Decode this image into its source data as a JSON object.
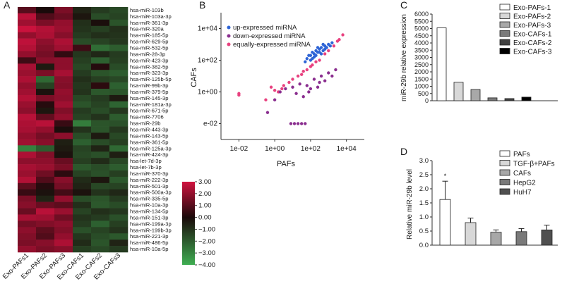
{
  "chart_data": [
    {
      "panel": "A",
      "type": "heatmap",
      "columns": [
        "Exo-PAFs1",
        "Exo-PAFs2",
        "Exo-PAFs3",
        "Exo-CAFs1",
        "Exo-CAFs2",
        "Exo-CAFs3"
      ],
      "rows": [
        "hsa-miR-103b",
        "hsa-miR-103a-3p",
        "hsa-miR-361-3p",
        "hsa-miR-320a",
        "hsa-miR-185-5p",
        "hsa-miR-629-5p",
        "hsa-miR-532-5p",
        "hsa-miR-28-3p",
        "hsa-miR-423-3p",
        "hsa-miR-382-5p",
        "hsa-miR-323-3p",
        "hsa-miR-125b-5p",
        "hsa-miR-99b-3p",
        "hsa-miR-379-5p",
        "hsa-miR-145-3p",
        "hsa-miR-181a-3p",
        "hsa-miR-671-5p",
        "hsa-miR-7706",
        "hsa-miR-29b",
        "hsa-miR-443-3p",
        "hsa-miR-143-5p",
        "hsa-miR-361-5p",
        "hsa-miR-125a-3p",
        "hsa-miR-424-3p",
        "hsa-let-7d-3p",
        "hsa-let-7b-3p",
        "hsa-miR-370-3p",
        "hsa-miR-222-3p",
        "hsa-miR-501-3p",
        "hsa-miR-500a-3p",
        "hsa-miR-335-5p",
        "hsa-miR-10a-3p",
        "hsa-miR-134-5p",
        "hsa-miR-151-3p",
        "hsa-miR-199a-3p",
        "hsa-miR-199b-3p",
        "hsa-miR-221-3p",
        "hsa-miR-486-5p",
        "hsa-miR-10a-5p"
      ],
      "values": [
        [
          1.0,
          0.0,
          1.6,
          -0.6,
          -1.2,
          -1.5
        ],
        [
          2.6,
          0.9,
          1.3,
          -0.3,
          -1.6,
          -1.4
        ],
        [
          2.2,
          1.6,
          2.0,
          -0.9,
          -0.1,
          -1.8
        ],
        [
          2.9,
          2.5,
          2.1,
          -1.0,
          -1.3,
          -0.9
        ],
        [
          2.0,
          2.4,
          1.8,
          -1.2,
          -0.9,
          -1.0
        ],
        [
          2.7,
          1.9,
          2.4,
          -1.6,
          -1.4,
          -1.1
        ],
        [
          2.5,
          1.7,
          2.2,
          0.6,
          -2.4,
          -2.0
        ],
        [
          2.0,
          1.5,
          0.4,
          -1.1,
          -0.7,
          -1.2
        ],
        [
          0.6,
          1.8,
          1.9,
          -1.3,
          -2.1,
          -1.3
        ],
        [
          2.3,
          -0.4,
          1.9,
          -1.5,
          0.2,
          -1.6
        ],
        [
          2.1,
          1.6,
          2.3,
          -1.2,
          -1.8,
          -2.0
        ],
        [
          2.4,
          -2.3,
          1.8,
          -0.9,
          -1.3,
          -1.5
        ],
        [
          2.0,
          -1.4,
          1.7,
          -1.1,
          0.3,
          -2.1
        ],
        [
          2.2,
          -0.2,
          2.0,
          -1.0,
          -1.9,
          -1.8
        ],
        [
          2.5,
          1.6,
          1.9,
          -1.5,
          -1.2,
          -0.4
        ],
        [
          2.1,
          0.2,
          2.2,
          -1.8,
          -1.4,
          -2.2
        ],
        [
          1.9,
          -0.3,
          1.7,
          -1.2,
          -1.6,
          -1.1
        ],
        [
          2.6,
          1.2,
          2.0,
          -1.4,
          -1.0,
          -2.0
        ],
        [
          2.4,
          2.6,
          0.5,
          -2.8,
          -1.8,
          -1.7
        ],
        [
          2.3,
          2.0,
          -0.1,
          -1.0,
          -1.8,
          -1.1
        ],
        [
          2.0,
          1.5,
          1.9,
          -1.6,
          -0.4,
          -1.5
        ],
        [
          2.2,
          1.8,
          -0.5,
          -2.1,
          -1.6,
          -1.3
        ],
        [
          -2.9,
          -2.0,
          -0.4,
          -1.4,
          -0.6,
          -2.3
        ],
        [
          2.4,
          1.7,
          -0.2,
          -1.5,
          -1.7,
          -0.5
        ],
        [
          1.9,
          1.9,
          1.3,
          -1.3,
          -0.8,
          -1.5
        ],
        [
          2.3,
          2.1,
          1.6,
          -1.9,
          -1.6,
          -2.0
        ],
        [
          2.1,
          1.4,
          0.3,
          -1.4,
          -1.7,
          -1.3
        ],
        [
          2.5,
          0.9,
          1.8,
          -0.8,
          -0.3,
          -1.9
        ],
        [
          1.1,
          0.2,
          1.5,
          -0.6,
          -1.5,
          -1.4
        ],
        [
          0.5,
          -0.2,
          0.7,
          -0.2,
          -1.0,
          -0.7
        ],
        [
          1.6,
          -0.6,
          2.0,
          -1.6,
          -1.8,
          -1.2
        ],
        [
          1.8,
          1.3,
          1.1,
          -0.9,
          -1.9,
          -1.6
        ],
        [
          1.3,
          2.6,
          2.1,
          -1.4,
          -0.9,
          -1.1
        ],
        [
          2.3,
          2.2,
          1.4,
          -1.0,
          -1.2,
          -1.7
        ],
        [
          1.5,
          1.7,
          1.9,
          -1.2,
          -2.1,
          -1.3
        ],
        [
          1.9,
          1.1,
          1.7,
          -1.7,
          -1.4,
          -1.0
        ],
        [
          1.7,
          0.9,
          2.0,
          -1.1,
          -1.6,
          -1.9
        ],
        [
          1.6,
          1.8,
          2.4,
          -0.8,
          -1.8,
          -0.6
        ],
        [
          2.0,
          1.6,
          1.8,
          -1.3,
          -1.5,
          -1.2
        ]
      ],
      "scale_min": -4.0,
      "scale_max": 3.0,
      "colorbar_ticks": [
        "3.00",
        "2.00",
        "1.00",
        "0.00",
        "−1.00",
        "−2.00",
        "−3.00",
        "−4.00"
      ],
      "colorbar_tick_values": [
        3,
        2,
        1,
        0,
        -1,
        -2,
        -3,
        -4
      ],
      "colors": {
        "high": "#d0123f",
        "mid": "#1a0a0a",
        "low": "#3fae52"
      }
    },
    {
      "panel": "B",
      "type": "scatter",
      "xlabel": "PAFs",
      "ylabel": "CAFs",
      "xscale": "log10",
      "yscale": "log10",
      "xlim_log10": [
        -3,
        5
      ],
      "ylim_log10": [
        -3,
        5
      ],
      "x_ticks": [
        "1e-02",
        "1e+00",
        "1e+02",
        "1e+04"
      ],
      "x_tick_values_log10": [
        -2,
        0,
        2,
        4
      ],
      "y_ticks": [
        "e-02",
        "1e+00",
        "1e+02",
        "1e+04"
      ],
      "y_tick_values_log10": [
        -2,
        0,
        2,
        4
      ],
      "legend": [
        "up-expressed miRNA",
        "down-expressed miRNA",
        "equally-expressed miRNA"
      ],
      "legend_position": "top-left",
      "series_colors": [
        "#2e64d6",
        "#8a2e8f",
        "#e8417f"
      ],
      "series": [
        {
          "name": "up-expressed miRNA",
          "points_log10": [
            [
              2.0,
              2.3
            ],
            [
              2.1,
              2.5
            ],
            [
              2.2,
              2.4
            ],
            [
              2.3,
              2.6
            ],
            [
              2.4,
              2.5
            ],
            [
              2.5,
              2.7
            ],
            [
              2.6,
              2.8
            ],
            [
              2.7,
              2.6
            ],
            [
              2.8,
              2.9
            ],
            [
              2.9,
              2.8
            ],
            [
              3.0,
              3.0
            ],
            [
              3.1,
              2.9
            ],
            [
              1.8,
              2.1
            ],
            [
              1.9,
              2.3
            ],
            [
              2.2,
              2.2
            ],
            [
              2.5,
              2.5
            ],
            [
              2.0,
              2.0
            ],
            [
              2.3,
              2.3
            ],
            [
              2.6,
              2.4
            ],
            [
              2.8,
              2.7
            ],
            [
              3.2,
              3.1
            ],
            [
              2.4,
              2.8
            ],
            [
              2.7,
              3.0
            ],
            [
              1.7,
              1.9
            ],
            [
              2.1,
              2.1
            ]
          ]
        },
        {
          "name": "down-expressed miRNA",
          "points_log10": [
            [
              -0.4,
              -1.3
            ],
            [
              0.0,
              -0.5
            ],
            [
              0.3,
              0.0
            ],
            [
              0.6,
              0.2
            ],
            [
              1.0,
              0.3
            ],
            [
              1.2,
              -0.1
            ],
            [
              1.4,
              0.5
            ],
            [
              1.6,
              -0.3
            ],
            [
              1.8,
              0.4
            ],
            [
              2.0,
              0.2
            ],
            [
              2.2,
              0.8
            ],
            [
              2.4,
              0.3
            ],
            [
              2.6,
              1.0
            ],
            [
              2.8,
              0.7
            ],
            [
              3.0,
              1.2
            ],
            [
              3.2,
              1.0
            ],
            [
              3.4,
              1.4
            ],
            [
              1.1,
              -2.0
            ],
            [
              1.3,
              -2.0
            ],
            [
              1.5,
              -2.0
            ],
            [
              1.7,
              -2.0
            ],
            [
              0.9,
              -2.0
            ],
            [
              1.9,
              0.0
            ],
            [
              2.5,
              0.6
            ]
          ]
        },
        {
          "name": "equally-expressed miRNA",
          "points_log10": [
            [
              -2.0,
              -0.2
            ],
            [
              -2.0,
              -0.1
            ],
            [
              -0.5,
              -0.5
            ],
            [
              0.0,
              0.1
            ],
            [
              0.5,
              0.4
            ],
            [
              1.0,
              0.8
            ],
            [
              1.5,
              1.1
            ],
            [
              2.0,
              1.6
            ],
            [
              2.5,
              2.0
            ],
            [
              3.0,
              2.6
            ],
            [
              3.5,
              3.2
            ],
            [
              3.8,
              3.6
            ],
            [
              0.2,
              0.0
            ],
            [
              0.8,
              0.6
            ],
            [
              1.3,
              1.0
            ],
            [
              1.8,
              1.4
            ],
            [
              2.3,
              1.9
            ],
            [
              2.8,
              2.4
            ],
            [
              3.3,
              2.9
            ],
            [
              -0.2,
              0.3
            ],
            [
              0.4,
              0.2
            ],
            [
              1.6,
              1.3
            ],
            [
              2.1,
              1.7
            ],
            [
              3.6,
              3.3
            ]
          ]
        }
      ]
    },
    {
      "panel": "C",
      "type": "bar",
      "ylabel": "miR-29b relative expression",
      "ylim": [
        0,
        6000
      ],
      "yticks": [
        0,
        500,
        1000,
        1500,
        2000,
        2500,
        3000,
        3500,
        4000,
        4500,
        5000,
        5500,
        6000
      ],
      "categories": [
        "Exo-PAFs-1",
        "Exo-PAFs-2",
        "Exo-PAFs-3",
        "Exo-CAFs-1",
        "Exo-CAFs-2",
        "Exo-CAFs-3"
      ],
      "values": [
        5050,
        1280,
        780,
        200,
        150,
        250
      ],
      "colors": [
        "#ffffff",
        "#d8d8d8",
        "#a8a8a8",
        "#7a7a7a",
        "#404040",
        "#000000"
      ],
      "legend_position": "top-right"
    },
    {
      "panel": "D",
      "type": "bar",
      "ylabel": "Relative miR-29b level",
      "ylim": [
        0,
        3.0
      ],
      "yticks": [
        "0.0",
        "0.5",
        "1.0",
        "1.5",
        "2.0",
        "2.5",
        "3.0"
      ],
      "ytick_values": [
        0,
        0.5,
        1.0,
        1.5,
        2.0,
        2.5,
        3.0
      ],
      "categories": [
        "PAFs",
        "TGF-β+PAFs",
        "CAFs",
        "HepG2",
        "HuH7"
      ],
      "values": [
        1.62,
        0.8,
        0.46,
        0.48,
        0.54
      ],
      "errors": [
        0.65,
        0.16,
        0.08,
        0.11,
        0.17
      ],
      "colors": [
        "#ffffff",
        "#d8d8d8",
        "#a8a8a8",
        "#7a7a7a",
        "#505050"
      ],
      "annotation": "*",
      "legend_position": "top-right"
    }
  ],
  "panels": {
    "a": "A",
    "b": "B",
    "c": "C",
    "d": "D"
  }
}
